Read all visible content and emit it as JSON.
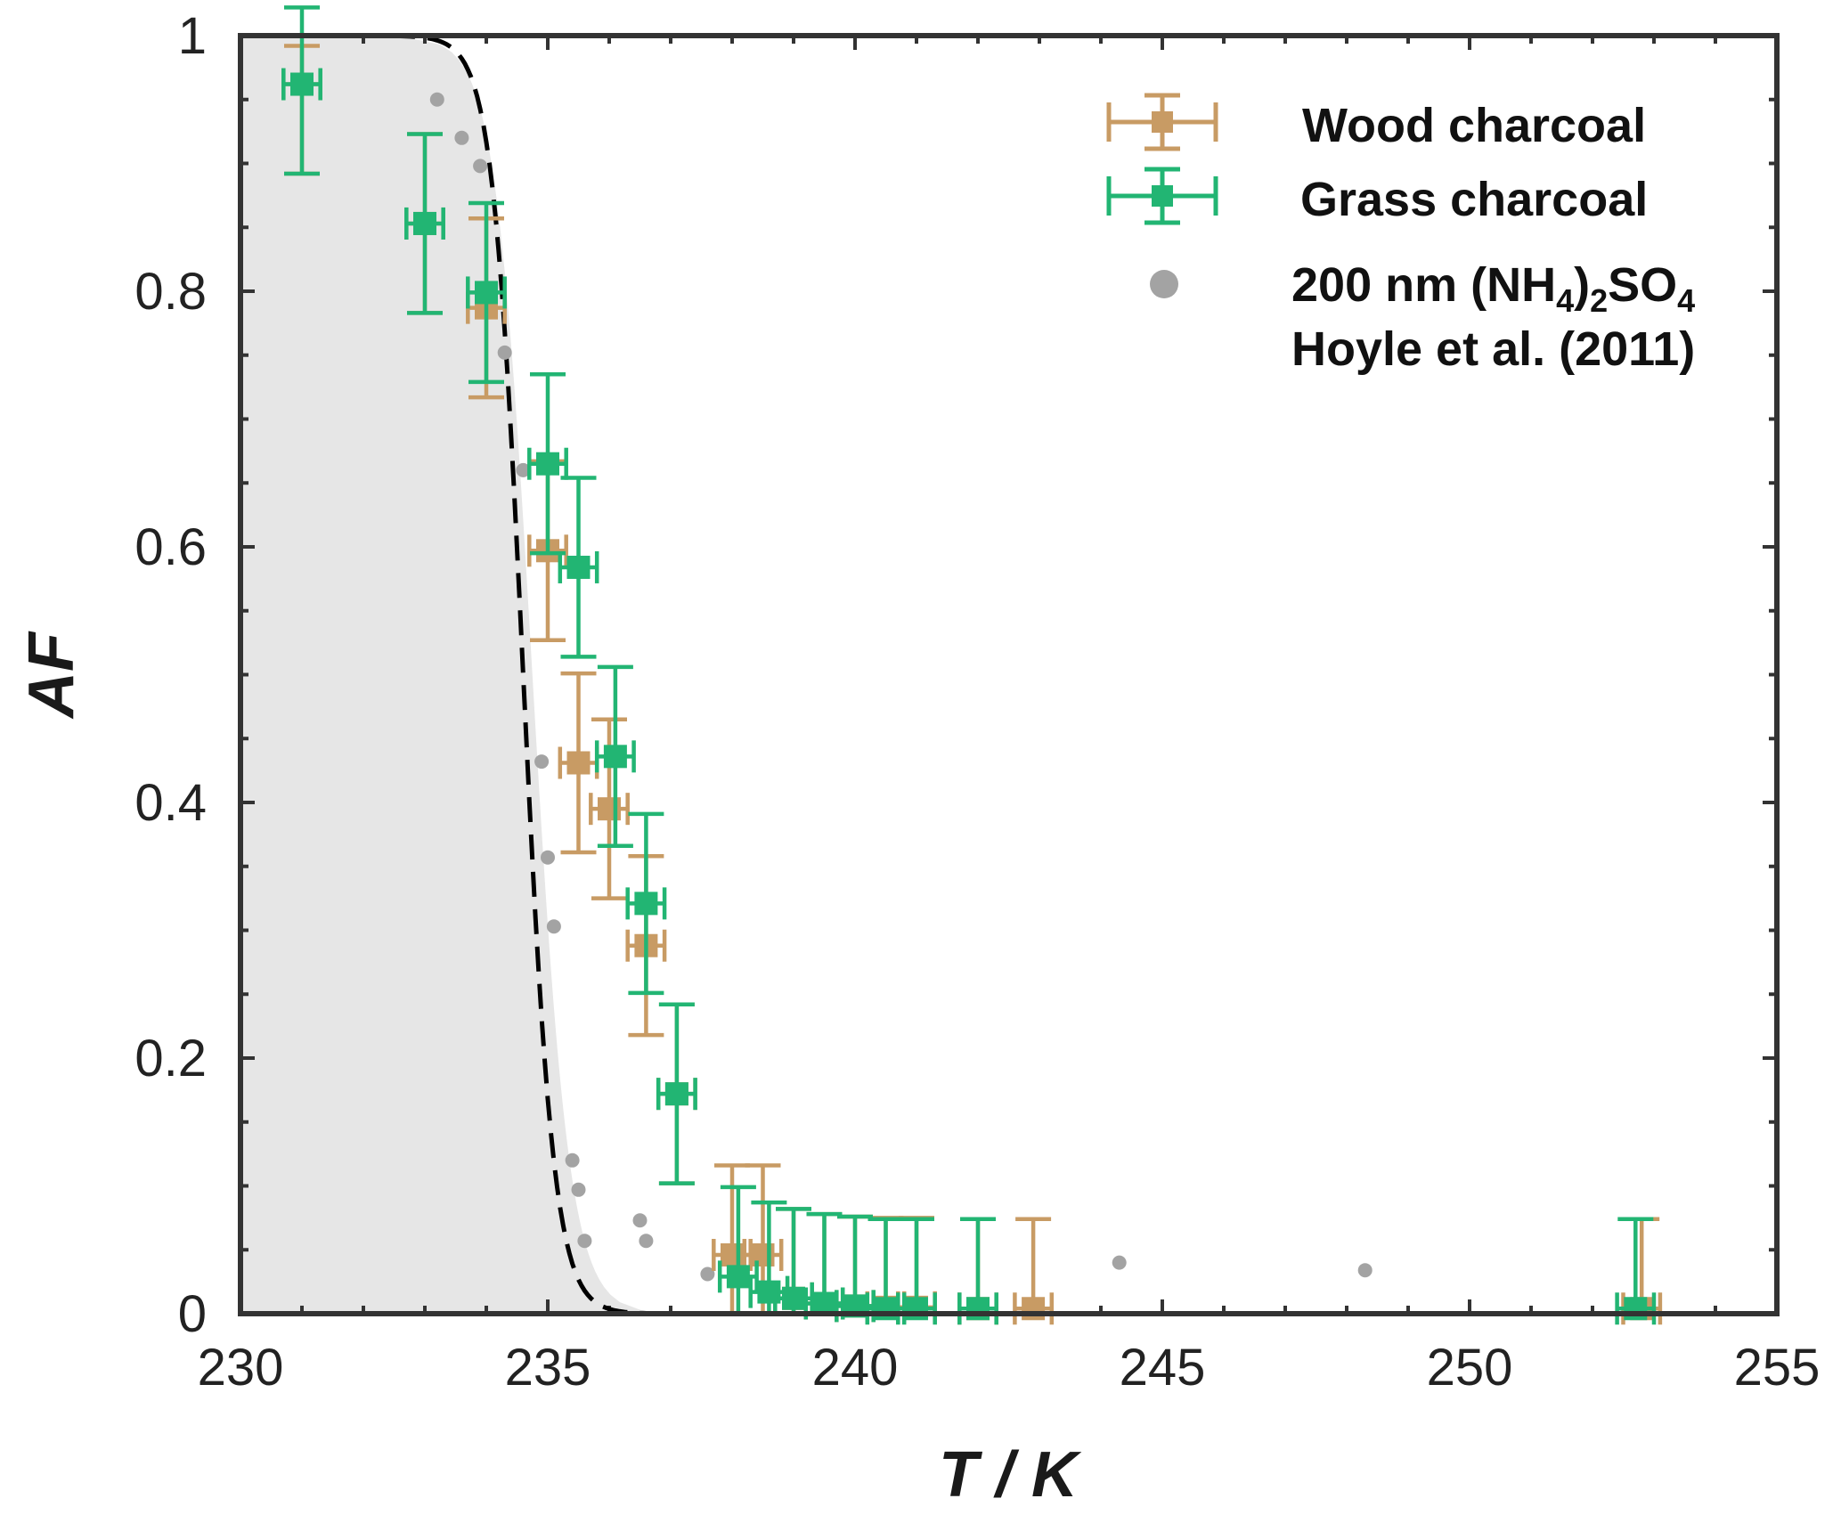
{
  "chart_data": {
    "type": "scatter",
    "xlabel": "T / K",
    "ylabel": "AF",
    "xlim": [
      230,
      255
    ],
    "ylim": [
      0,
      1
    ],
    "x_ticks": [
      230,
      235,
      240,
      245,
      250,
      255
    ],
    "x_tick_labels": [
      "230",
      "235",
      "240",
      "245",
      "250",
      "255"
    ],
    "y_ticks": [
      0,
      0.2,
      0.4,
      0.6,
      0.8,
      1
    ],
    "y_tick_labels": [
      "0",
      "0.2",
      "0.4",
      "0.6",
      "0.8",
      "1"
    ],
    "grid": false,
    "legend_position": "top-right",
    "legend": [
      {
        "label": "Wood charcoal",
        "marker": "square-errorbar",
        "color": "#c89b64"
      },
      {
        "label": "Grass charcoal",
        "marker": "square-errorbar",
        "color": "#22b573"
      },
      {
        "label_parts": [
          "200 nm (NH",
          "4",
          ")",
          "2",
          "SO",
          "4"
        ],
        "marker": "circle",
        "color": "#a3a3a3"
      },
      {
        "label": "Hoyle et al. (2011)"
      }
    ],
    "colors": {
      "wood": "#c89b64",
      "grass": "#22b573",
      "reference": "#a3a3a3",
      "shade": "#e6e6e6",
      "curve": "#000000",
      "axis": "#333333"
    },
    "series": [
      {
        "name": "Wood charcoal",
        "points": [
          {
            "x": 231.0,
            "y": 0.962,
            "yerr_low": 0.07,
            "yerr_high": 0.03,
            "xerr": 0.3
          },
          {
            "x": 233.0,
            "y": 0.853,
            "yerr_low": 0.07,
            "yerr_high": 0.07,
            "xerr": 0.3
          },
          {
            "x": 234.0,
            "y": 0.787,
            "yerr_low": 0.07,
            "yerr_high": 0.07,
            "xerr": 0.3
          },
          {
            "x": 235.0,
            "y": 0.597,
            "yerr_low": 0.07,
            "yerr_high": 0.07,
            "xerr": 0.3
          },
          {
            "x": 235.5,
            "y": 0.431,
            "yerr_low": 0.07,
            "yerr_high": 0.07,
            "xerr": 0.3
          },
          {
            "x": 236.0,
            "y": 0.395,
            "yerr_low": 0.07,
            "yerr_high": 0.07,
            "xerr": 0.3
          },
          {
            "x": 236.6,
            "y": 0.288,
            "yerr_low": 0.07,
            "yerr_high": 0.07,
            "xerr": 0.3
          },
          {
            "x": 237.1,
            "y": 0.172,
            "yerr_low": 0.07,
            "yerr_high": 0.07,
            "xerr": 0.3
          },
          {
            "x": 238.0,
            "y": 0.046,
            "yerr_low": 0.046,
            "yerr_high": 0.07,
            "xerr": 0.3
          },
          {
            "x": 238.5,
            "y": 0.046,
            "yerr_low": 0.046,
            "yerr_high": 0.07,
            "xerr": 0.3
          },
          {
            "x": 239.0,
            "y": 0.012,
            "yerr_low": 0.012,
            "yerr_high": 0.07,
            "xerr": 0.3
          },
          {
            "x": 239.5,
            "y": 0.008,
            "yerr_low": 0.008,
            "yerr_high": 0.07,
            "xerr": 0.3
          },
          {
            "x": 240.0,
            "y": 0.006,
            "yerr_low": 0.006,
            "yerr_high": 0.07,
            "xerr": 0.3
          },
          {
            "x": 240.5,
            "y": 0.005,
            "yerr_low": 0.005,
            "yerr_high": 0.07,
            "xerr": 0.3
          },
          {
            "x": 241.0,
            "y": 0.005,
            "yerr_low": 0.005,
            "yerr_high": 0.07,
            "xerr": 0.3
          },
          {
            "x": 242.0,
            "y": 0.004,
            "yerr_low": 0.004,
            "yerr_high": 0.07,
            "xerr": 0.3
          },
          {
            "x": 242.9,
            "y": 0.004,
            "yerr_low": 0.004,
            "yerr_high": 0.07,
            "xerr": 0.3
          },
          {
            "x": 252.8,
            "y": 0.004,
            "yerr_low": 0.004,
            "yerr_high": 0.07,
            "xerr": 0.3
          }
        ]
      },
      {
        "name": "Grass charcoal",
        "points": [
          {
            "x": 231.0,
            "y": 0.962,
            "yerr_low": 0.07,
            "yerr_high": 0.06,
            "xerr": 0.3
          },
          {
            "x": 233.0,
            "y": 0.853,
            "yerr_low": 0.07,
            "yerr_high": 0.07,
            "xerr": 0.3
          },
          {
            "x": 234.0,
            "y": 0.799,
            "yerr_low": 0.07,
            "yerr_high": 0.07,
            "xerr": 0.3
          },
          {
            "x": 235.0,
            "y": 0.665,
            "yerr_low": 0.07,
            "yerr_high": 0.07,
            "xerr": 0.3
          },
          {
            "x": 235.5,
            "y": 0.584,
            "yerr_low": 0.07,
            "yerr_high": 0.07,
            "xerr": 0.3
          },
          {
            "x": 236.1,
            "y": 0.436,
            "yerr_low": 0.07,
            "yerr_high": 0.07,
            "xerr": 0.3
          },
          {
            "x": 236.6,
            "y": 0.321,
            "yerr_low": 0.07,
            "yerr_high": 0.07,
            "xerr": 0.3
          },
          {
            "x": 237.1,
            "y": 0.172,
            "yerr_low": 0.07,
            "yerr_high": 0.07,
            "xerr": 0.3
          },
          {
            "x": 238.1,
            "y": 0.029,
            "yerr_low": 0.029,
            "yerr_high": 0.07,
            "xerr": 0.3
          },
          {
            "x": 238.6,
            "y": 0.017,
            "yerr_low": 0.017,
            "yerr_high": 0.07,
            "xerr": 0.3
          },
          {
            "x": 239.0,
            "y": 0.012,
            "yerr_low": 0.012,
            "yerr_high": 0.07,
            "xerr": 0.3
          },
          {
            "x": 239.5,
            "y": 0.008,
            "yerr_low": 0.008,
            "yerr_high": 0.07,
            "xerr": 0.3
          },
          {
            "x": 240.0,
            "y": 0.006,
            "yerr_low": 0.006,
            "yerr_high": 0.07,
            "xerr": 0.3
          },
          {
            "x": 240.5,
            "y": 0.004,
            "yerr_low": 0.004,
            "yerr_high": 0.07,
            "xerr": 0.3
          },
          {
            "x": 241.0,
            "y": 0.004,
            "yerr_low": 0.004,
            "yerr_high": 0.07,
            "xerr": 0.3
          },
          {
            "x": 242.0,
            "y": 0.004,
            "yerr_low": 0.004,
            "yerr_high": 0.07,
            "xerr": 0.3
          },
          {
            "x": 252.7,
            "y": 0.004,
            "yerr_low": 0.004,
            "yerr_high": 0.07,
            "xerr": 0.3
          }
        ]
      },
      {
        "name": "200 nm (NH4)2SO4 Hoyle et al. (2011)",
        "points": [
          {
            "x": 233.2,
            "y": 0.95
          },
          {
            "x": 233.6,
            "y": 0.92
          },
          {
            "x": 233.9,
            "y": 0.898
          },
          {
            "x": 234.3,
            "y": 0.752
          },
          {
            "x": 234.6,
            "y": 0.66
          },
          {
            "x": 234.9,
            "y": 0.432
          },
          {
            "x": 235.0,
            "y": 0.357
          },
          {
            "x": 235.1,
            "y": 0.303
          },
          {
            "x": 235.4,
            "y": 0.12
          },
          {
            "x": 235.5,
            "y": 0.097
          },
          {
            "x": 235.6,
            "y": 0.057
          },
          {
            "x": 236.5,
            "y": 0.073
          },
          {
            "x": 236.6,
            "y": 0.057
          },
          {
            "x": 237.6,
            "y": 0.031
          },
          {
            "x": 244.3,
            "y": 0.04
          },
          {
            "x": 248.3,
            "y": 0.034
          }
        ]
      }
    ],
    "shaded_region": {
      "boundary_x_at_half": 234.75,
      "slope_per_K": 3.3
    },
    "dashed_curve": {
      "midpoint_x": 234.6,
      "slope_per_K": 4.0
    }
  }
}
